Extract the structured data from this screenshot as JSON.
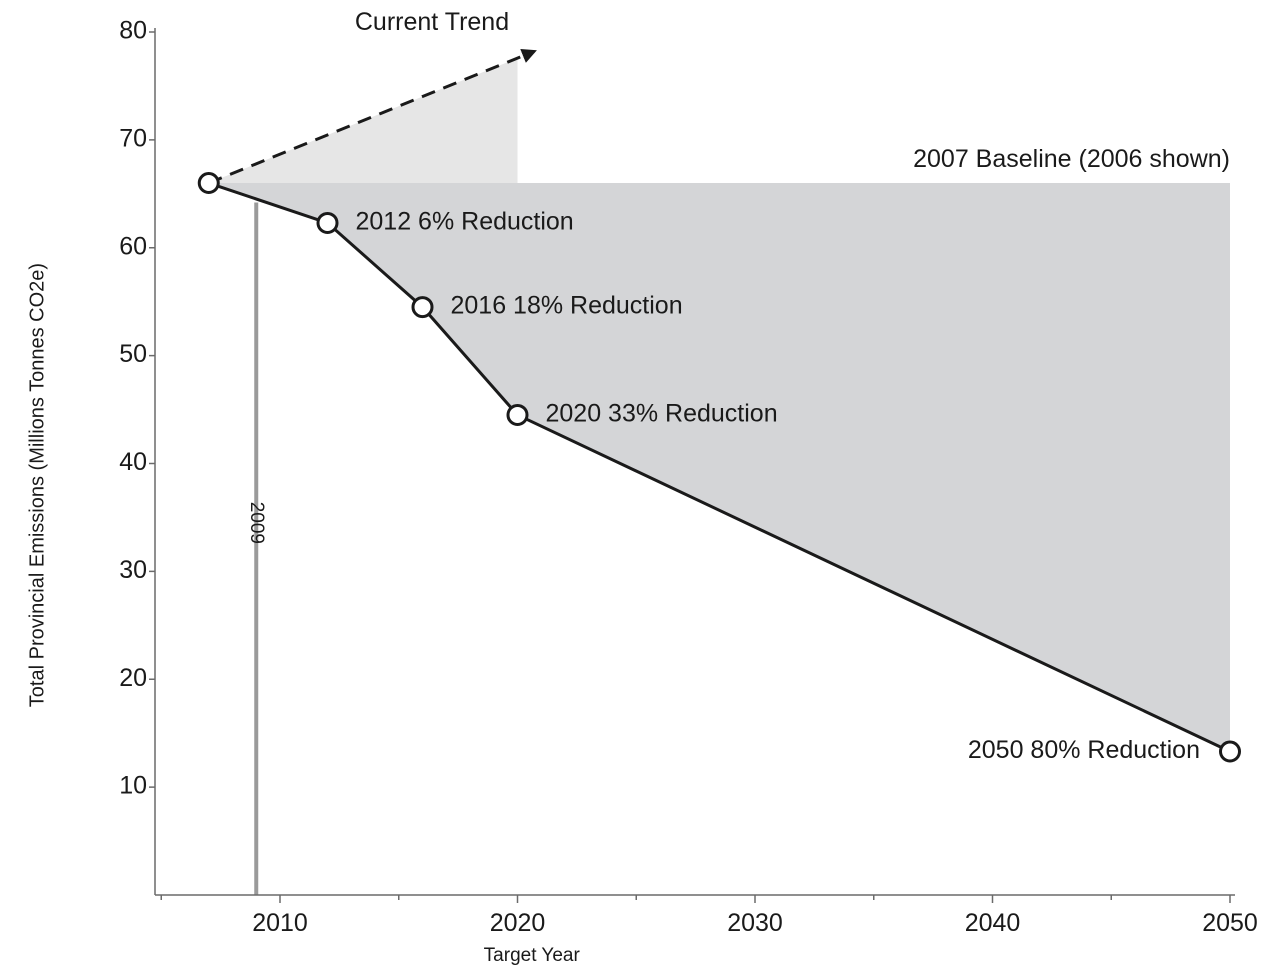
{
  "chart_data": {
    "type": "line",
    "xlabel": "Target Year",
    "ylabel": "Total Provincial Emissions (Millions Tonnes CO2e)",
    "xlim": [
      2005,
      2050
    ],
    "ylim": [
      0,
      80
    ],
    "x_ticks": [
      2010,
      2020,
      2030,
      2040,
      2050
    ],
    "y_ticks": [
      10,
      20,
      30,
      40,
      50,
      60,
      70,
      80
    ],
    "grid": false,
    "series": [
      {
        "name": "",
        "style": "solid",
        "x": [
          2007,
          2012,
          2016,
          2020,
          2050
        ],
        "y": [
          66,
          62.3,
          54.5,
          44.5,
          13.3
        ]
      },
      {
        "name": "Current Trend",
        "style": "dashed-arrow",
        "x": [
          2007,
          2020.7
        ],
        "y": [
          66,
          78.2
        ]
      }
    ],
    "baseline": {
      "value": 66,
      "label": "2007 Baseline (2006 shown)"
    },
    "trend_label": "Current Trend",
    "marker_line": {
      "x": 2009,
      "label": "2009"
    },
    "annotations": [
      {
        "x": 2012,
        "y": 62.3,
        "label": "2012  6% Reduction"
      },
      {
        "x": 2016,
        "y": 54.5,
        "label": "2016  18% Reduction"
      },
      {
        "x": 2020,
        "y": 44.5,
        "label": "2020  33% Reduction"
      },
      {
        "x": 2050,
        "y": 13.3,
        "label": "2050  80% Reduction"
      }
    ],
    "colors": {
      "reduction_fill": "#d4d5d7",
      "trend_fill": "#e6e6e6",
      "line": "#1a1a1a",
      "marker_line": "#9a9a9a"
    }
  }
}
